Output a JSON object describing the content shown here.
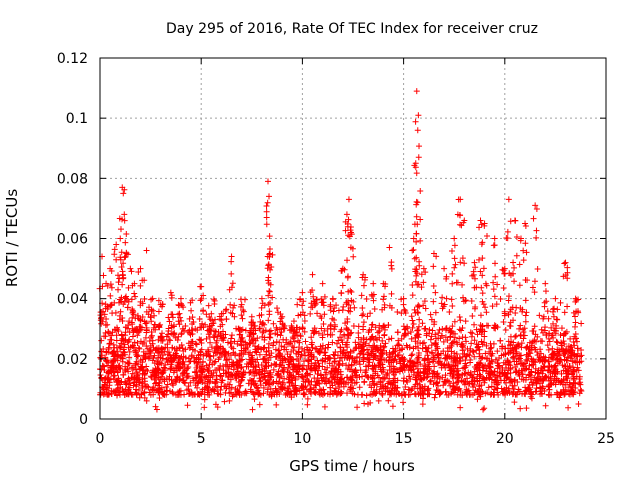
{
  "chart_data": {
    "type": "scatter",
    "title": "Day 295 of 2016, Rate Of TEC Index for receiver cruz",
    "xlabel": "GPS time / hours",
    "ylabel": "ROTI / TECUs",
    "xlim": [
      0,
      25
    ],
    "ylim": [
      0,
      0.12
    ],
    "xticks": [
      0,
      5,
      10,
      15,
      20,
      25
    ],
    "xtick_labels": [
      "0",
      "5",
      "10",
      "15",
      "20",
      "25"
    ],
    "yticks": [
      0,
      0.02,
      0.04,
      0.06,
      0.08,
      0.1,
      0.12
    ],
    "ytick_labels": [
      "0",
      "0.02",
      "0.04",
      "0.06",
      "0.08",
      "0.1",
      "0.12"
    ],
    "grid": true,
    "marker": "+",
    "color": "#ff0000",
    "series": [
      {
        "name": "ROTI",
        "description_points": "dense band ~0.008-0.03 TECU across 0-23.8 h with spikes",
        "band": {
          "x_range": [
            0,
            23.8
          ],
          "typical_low": 0.008,
          "typical_high": 0.028
        },
        "x": [
          0.1,
          0.3,
          0.5,
          0.8,
          1.0,
          1.1,
          1.15,
          1.2,
          1.3,
          1.5,
          1.7,
          2.0,
          2.3,
          2.6,
          3.0,
          3.5,
          4.0,
          4.5,
          5.0,
          5.5,
          6.0,
          6.5,
          7.0,
          7.5,
          8.0,
          8.3,
          8.35,
          8.4,
          9.0,
          9.5,
          10.0,
          10.5,
          11.0,
          11.5,
          12.0,
          12.2,
          12.3,
          12.4,
          13.0,
          13.5,
          14.0,
          14.3,
          15.0,
          15.5,
          15.6,
          15.65,
          15.7,
          15.75,
          16.0,
          16.5,
          17.0,
          17.5,
          17.8,
          18.0,
          18.5,
          18.8,
          19.0,
          19.5,
          20.0,
          20.2,
          20.5,
          20.8,
          21.0,
          21.5,
          22.0,
          22.5,
          23.0,
          23.5
        ],
        "y": [
          0.054,
          0.045,
          0.05,
          0.058,
          0.06,
          0.077,
          0.075,
          0.068,
          0.055,
          0.05,
          0.045,
          0.05,
          0.056,
          0.04,
          0.038,
          0.042,
          0.04,
          0.036,
          0.044,
          0.035,
          0.035,
          0.054,
          0.038,
          0.034,
          0.04,
          0.079,
          0.074,
          0.055,
          0.034,
          0.03,
          0.042,
          0.048,
          0.045,
          0.04,
          0.05,
          0.068,
          0.073,
          0.062,
          0.048,
          0.045,
          0.045,
          0.057,
          0.04,
          0.06,
          0.085,
          0.109,
          0.096,
          0.087,
          0.05,
          0.055,
          0.05,
          0.06,
          0.073,
          0.066,
          0.052,
          0.066,
          0.065,
          0.06,
          0.05,
          0.073,
          0.066,
          0.06,
          0.065,
          0.071,
          0.045,
          0.04,
          0.052,
          0.04
        ]
      }
    ]
  }
}
